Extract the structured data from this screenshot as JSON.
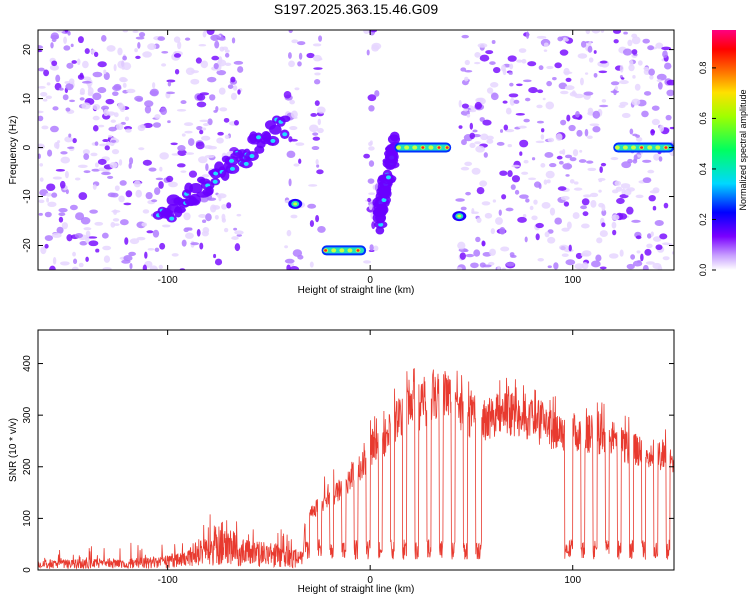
{
  "title": "S197.2025.363.15.46.G09",
  "chart_data": [
    {
      "type": "heatmap",
      "panel": "spectrogram",
      "xlabel": "Height of straight line (km)",
      "ylabel": "Frequency (Hz)",
      "xlim": [
        -164,
        150
      ],
      "ylim": [
        -25,
        24
      ],
      "x_ticks": [
        -100,
        0,
        100
      ],
      "x_tick_labels": [
        "-100",
        "0",
        "100"
      ],
      "y_ticks": [
        -20,
        -10,
        0,
        10,
        20
      ],
      "y_tick_labels": [
        "-20",
        "-10",
        "0",
        "10",
        "20"
      ],
      "colorbar": {
        "label": "Normalized spectral amplitude",
        "range": [
          0,
          0.95
        ],
        "ticks": [
          0,
          0.2,
          0.4,
          0.6,
          0.8
        ],
        "tick_labels": [
          "0.0",
          "0.2",
          "0.4",
          "0.6",
          "0.8"
        ],
        "colormap": "rainbow (white-violet-blue-cyan-green-yellow-red-magenta)"
      },
      "features": [
        {
          "name": "rising chirp",
          "x_range": [
            -104,
            -42
          ],
          "freq_range": [
            -15,
            5
          ]
        },
        {
          "name": "blob",
          "x": -37,
          "freq": -11.5
        },
        {
          "name": "low band",
          "x_range": [
            -24,
            -2
          ],
          "freq": -21
        },
        {
          "name": "chirp up",
          "x_range": [
            4,
            12
          ],
          "freq_range": [
            -15,
            1
          ]
        },
        {
          "name": "tone",
          "x_range": [
            12,
            40
          ],
          "freq": 0
        },
        {
          "name": "blob",
          "x": 44,
          "freq": -14
        },
        {
          "name": "tone",
          "x_range": [
            120,
            150
          ],
          "freq": 0
        }
      ],
      "gaps_x": [
        [
          -64,
          -42
        ],
        [
          -34,
          -30
        ],
        [
          -24,
          -2
        ],
        [
          4,
          40
        ],
        [
          40,
          44
        ],
        [
          116,
          120
        ]
      ]
    },
    {
      "type": "line",
      "panel": "snr",
      "xlabel": "Height of straight line (km)",
      "ylabel": "SNR (10 * v/v)",
      "xlim": [
        -164,
        150
      ],
      "ylim": [
        0,
        465
      ],
      "x_ticks": [
        -100,
        0,
        100
      ],
      "x_tick_labels": [
        "-100",
        "0",
        "100"
      ],
      "y_ticks": [
        0,
        100,
        200,
        300,
        400
      ],
      "y_tick_labels": [
        "0",
        "100",
        "200",
        "300",
        "400"
      ],
      "series": [
        {
          "name": "SNR",
          "color": "#e83a2f",
          "envelope_x": [
            -164,
            -130,
            -110,
            -100,
            -90,
            -80,
            -75,
            -70,
            -60,
            -50,
            -40,
            -33,
            -32,
            -20,
            -10,
            -5,
            0,
            5,
            10,
            15,
            20,
            25,
            30,
            35,
            40,
            45,
            50,
            55,
            60,
            65,
            70,
            80,
            90,
            100,
            110,
            120,
            130,
            140,
            150
          ],
          "envelope_y": [
            20,
            22,
            25,
            30,
            45,
            75,
            100,
            80,
            60,
            55,
            45,
            35,
            120,
            160,
            200,
            230,
            260,
            280,
            310,
            340,
            370,
            360,
            380,
            400,
            390,
            350,
            340,
            335,
            335,
            350,
            345,
            330,
            310,
            305,
            300,
            290,
            265,
            260,
            250
          ],
          "dropout_floor": 40
        }
      ]
    }
  ]
}
